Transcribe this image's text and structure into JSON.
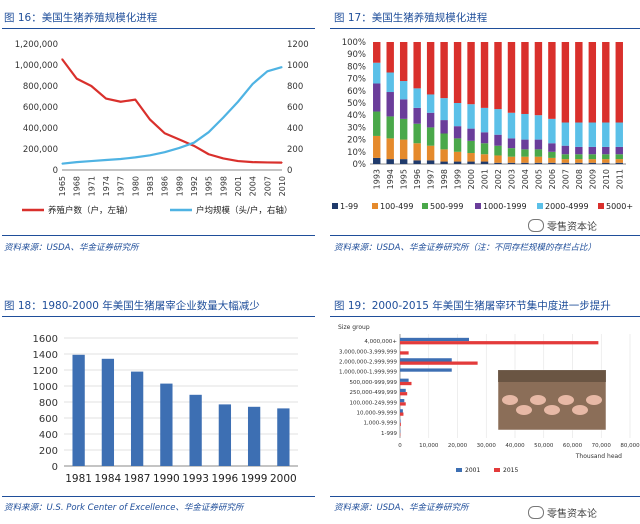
{
  "panels": {
    "fig16": {
      "title": "图 16：美国生猪养殖规模化进程",
      "source": "资料来源：USDA、华金证券研究所"
    },
    "fig17": {
      "title": "图 17：美国生猪养殖规模化进程",
      "source": "资料来源：USDA、华金证券研究所（注：不同存栏规模的存栏占比）"
    },
    "fig18": {
      "title": "图 18：1980-2000 年美国生猪屠宰企业数量大幅减少",
      "source": "资料来源：U.S. Pork Center of Excellence、华金证券研究所"
    },
    "fig19": {
      "title": "图 19：2000-2015 年美国生猪屠宰环节集中度进一步提升",
      "source": "资料来源：USDA、华金证券研究所"
    }
  },
  "watermark": {
    "text": "零售资本论"
  },
  "chart_data": [
    {
      "type": "line",
      "x": [
        "1965",
        "1968",
        "1971",
        "1974",
        "1977",
        "1980",
        "1983",
        "1986",
        "1989",
        "1992",
        "1995",
        "1998",
        "2001",
        "2004",
        "2007",
        "2010"
      ],
      "series": [
        {
          "name": "养殖户数（户，左轴）",
          "axis": "left",
          "color": "#d9302c",
          "values": [
            1057000,
            870000,
            800000,
            680000,
            650000,
            670000,
            480000,
            350000,
            290000,
            230000,
            150000,
            110000,
            85000,
            75000,
            72000,
            70000
          ]
        },
        {
          "name": "户均规模（头/户，右轴）",
          "axis": "right",
          "color": "#4fb3e3",
          "values": [
            60,
            75,
            85,
            95,
            105,
            120,
            140,
            170,
            210,
            260,
            360,
            500,
            650,
            820,
            940,
            980
          ]
        }
      ],
      "yticks_left": [
        "0",
        "200,000",
        "400,000",
        "600,000",
        "800,000",
        "1,000,000",
        "1,200,000"
      ],
      "yticks_right": [
        "0",
        "200",
        "400",
        "600",
        "800",
        "1000",
        "1200"
      ],
      "ylim_left": [
        0,
        1200000
      ],
      "ylim_right": [
        0,
        1200
      ],
      "legend_position": "bottom"
    },
    {
      "type": "bar",
      "stacked": true,
      "categories": [
        "1993",
        "1994",
        "1995",
        "1996",
        "1997",
        "1998",
        "1999",
        "2000",
        "2001",
        "2002",
        "2003",
        "2004",
        "2005",
        "2006",
        "2007",
        "2008",
        "2009",
        "2010",
        "2011"
      ],
      "series": [
        {
          "name": "1-99",
          "color": "#1f3a6b",
          "values": [
            5,
            4,
            4,
            3,
            3,
            2,
            2,
            2,
            2,
            1,
            1,
            1,
            1,
            1,
            1,
            1,
            1,
            1,
            1
          ]
        },
        {
          "name": "100-499",
          "color": "#e58a2c",
          "values": [
            18,
            17,
            16,
            14,
            12,
            10,
            8,
            7,
            6,
            6,
            5,
            5,
            5,
            4,
            3,
            3,
            3,
            3,
            3
          ]
        },
        {
          "name": "500-999",
          "color": "#4aa84a",
          "values": [
            20,
            18,
            17,
            16,
            15,
            13,
            11,
            10,
            9,
            8,
            7,
            6,
            6,
            5,
            4,
            4,
            4,
            4,
            4
          ]
        },
        {
          "name": "1000-1999",
          "color": "#6a3d9a",
          "values": [
            23,
            20,
            16,
            13,
            12,
            11,
            10,
            10,
            9,
            9,
            8,
            8,
            8,
            7,
            7,
            6,
            6,
            6,
            6
          ]
        },
        {
          "name": "2000-4999",
          "color": "#5bc0e8",
          "values": [
            17,
            16,
            15,
            16,
            15,
            18,
            19,
            20,
            20,
            21,
            21,
            21,
            20,
            20,
            19,
            20,
            20,
            20,
            20
          ]
        },
        {
          "name": "5000+",
          "color": "#d9302c",
          "values": [
            17,
            25,
            32,
            38,
            43,
            46,
            50,
            51,
            54,
            55,
            58,
            59,
            60,
            63,
            66,
            66,
            66,
            66,
            66
          ]
        }
      ],
      "yticks": [
        "0%",
        "10%",
        "20%",
        "30%",
        "40%",
        "50%",
        "60%",
        "70%",
        "80%",
        "90%",
        "100%"
      ],
      "ylim": [
        0,
        100
      ],
      "legend_position": "bottom"
    },
    {
      "type": "bar",
      "categories": [
        "1981",
        "1984",
        "1987",
        "1990",
        "1993",
        "1996",
        "1999",
        "2000"
      ],
      "values": [
        1390,
        1340,
        1180,
        1030,
        890,
        770,
        740,
        720
      ],
      "yticks": [
        "0",
        "200",
        "400",
        "600",
        "800",
        "1000",
        "1200",
        "1400",
        "1600"
      ],
      "ylim": [
        0,
        1600
      ],
      "color": "#3d6fb3"
    },
    {
      "type": "bar",
      "orientation": "horizontal",
      "group_title": "Size group",
      "categories": [
        "4,000,000+",
        "3,000,000-3,999,999",
        "2,000,000-2,999,999",
        "1,000,000-1,999,999",
        "500,000-999,999",
        "250,000-499,999",
        "100,000-249,999",
        "10,000-99,999",
        "1,000-9,999",
        "1-999"
      ],
      "series": [
        {
          "name": "2001",
          "color": "#3d6fb3",
          "values": [
            24000,
            0,
            18000,
            18000,
            3000,
            2000,
            1500,
            1000,
            200,
            100
          ]
        },
        {
          "name": "2015",
          "color": "#e33b3b",
          "values": [
            69000,
            3000,
            27000,
            0,
            4000,
            2500,
            2000,
            1200,
            300,
            100
          ]
        }
      ],
      "xticks": [
        "0",
        "10,000",
        "20,000",
        "30,000",
        "40,000",
        "50,000",
        "60,000",
        "70,000",
        "80,000"
      ],
      "xlim": [
        0,
        80000
      ],
      "xlabel": "Thousand head",
      "legend_position": "bottom"
    }
  ]
}
